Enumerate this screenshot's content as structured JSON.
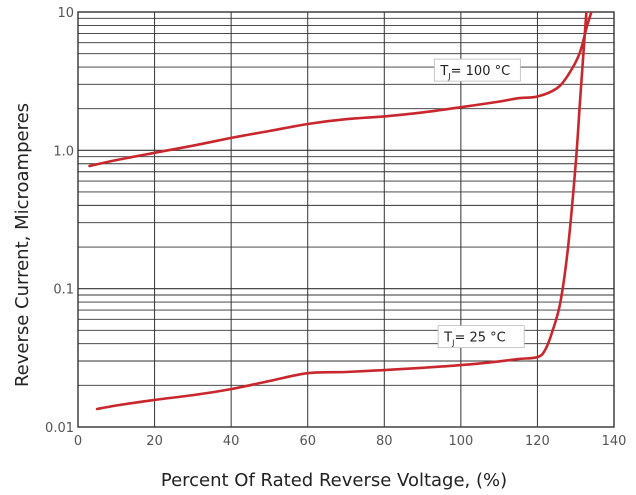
{
  "chart_data": {
    "type": "line",
    "title": "",
    "xlabel": "Percent Of Rated Reverse Voltage, (%)",
    "ylabel": "Reverse Current, Microamperes",
    "xlim": [
      0,
      140
    ],
    "ylim": [
      0.01,
      10
    ],
    "y_scale": "log",
    "grid": true,
    "x_ticks": [
      "0",
      "20",
      "40",
      "60",
      "80",
      "100",
      "120",
      "140"
    ],
    "y_ticks": [
      "0.01",
      "0.1",
      "1.0",
      "10"
    ],
    "line_color": "#c8282d",
    "series": [
      {
        "annotation": {
          "prefix": "T",
          "sub": "J",
          "suffix": "= 100 °C",
          "x": 103,
          "y": 3.8
        },
        "x": [
          3,
          10,
          20,
          30,
          40,
          50,
          60,
          70,
          80,
          90,
          100,
          110,
          115,
          120,
          125,
          128,
          131,
          133,
          135
        ],
        "y": [
          0.77,
          0.85,
          0.96,
          1.08,
          1.23,
          1.38,
          1.55,
          1.68,
          1.76,
          1.88,
          2.05,
          2.25,
          2.38,
          2.45,
          2.8,
          3.5,
          5.0,
          8.0,
          12.0
        ]
      },
      {
        "annotation": {
          "prefix": "T",
          "sub": "J",
          "suffix": "= 25 °C",
          "x": 104,
          "y": 0.045
        },
        "x": [
          5,
          10,
          20,
          30,
          40,
          50,
          60,
          70,
          80,
          90,
          100,
          110,
          115,
          120,
          122,
          124,
          126,
          128,
          130,
          131,
          132,
          133
        ],
        "y": [
          0.0135,
          0.0143,
          0.0157,
          0.017,
          0.0188,
          0.0215,
          0.0245,
          0.025,
          0.0258,
          0.0268,
          0.028,
          0.0298,
          0.031,
          0.032,
          0.036,
          0.05,
          0.08,
          0.2,
          0.8,
          2.0,
          5.0,
          12.0
        ]
      }
    ]
  }
}
